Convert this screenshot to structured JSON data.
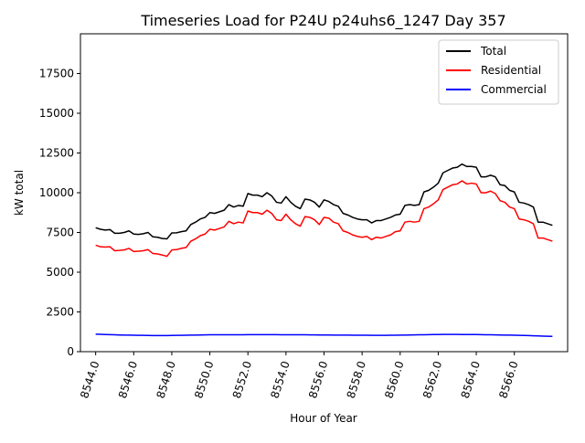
{
  "chart_data": {
    "type": "line",
    "title": "Timeseries Load for P24U p24uhs6_1247  Day 357",
    "xlabel": "Hour of Year",
    "ylabel": "kW total",
    "xlim": [
      8543.2,
      8568.8
    ],
    "ylim": [
      0,
      20000
    ],
    "x_ticks": [
      8544,
      8546,
      8548,
      8550,
      8552,
      8554,
      8556,
      8558,
      8560,
      8562,
      8564,
      8566
    ],
    "x_tick_labels": [
      "8544.0",
      "8546.0",
      "8548.0",
      "8550.0",
      "8552.0",
      "8554.0",
      "8556.0",
      "8558.0",
      "8560.0",
      "8562.0",
      "8564.0",
      "8566.0"
    ],
    "y_ticks": [
      0,
      2500,
      5000,
      7500,
      10000,
      12500,
      15000,
      17500
    ],
    "y_tick_labels": [
      "0",
      "2500",
      "5000",
      "7500",
      "10000",
      "12500",
      "15000",
      "17500"
    ],
    "legend_position": "top-right",
    "x_start": 8544,
    "x_step": 0.25,
    "series": [
      {
        "name": "Total",
        "color": "#000000",
        "values": [
          7800,
          7700,
          7650,
          7680,
          7450,
          7450,
          7500,
          7600,
          7400,
          7380,
          7420,
          7500,
          7230,
          7200,
          7120,
          7100,
          7470,
          7480,
          7550,
          7600,
          8000,
          8150,
          8350,
          8450,
          8750,
          8700,
          8800,
          8900,
          9250,
          9100,
          9200,
          9150,
          9950,
          9850,
          9850,
          9750,
          10000,
          9800,
          9400,
          9350,
          9750,
          9400,
          9150,
          9000,
          9600,
          9550,
          9400,
          9100,
          9550,
          9450,
          9250,
          9150,
          8700,
          8600,
          8450,
          8350,
          8300,
          8300,
          8100,
          8250,
          8250,
          8350,
          8450,
          8600,
          8650,
          9200,
          9250,
          9200,
          9250,
          10050,
          10150,
          10350,
          10600,
          11250,
          11400,
          11550,
          11600,
          11800,
          11650,
          11650,
          11600,
          11000,
          11000,
          11100,
          11000,
          10500,
          10450,
          10150,
          10050,
          9400,
          9350,
          9250,
          9100,
          8150,
          8150,
          8050,
          7950
        ]
      },
      {
        "name": "Residential",
        "color": "#ff0000",
        "values": [
          6700,
          6600,
          6580,
          6600,
          6350,
          6370,
          6400,
          6500,
          6300,
          6320,
          6350,
          6420,
          6180,
          6150,
          6080,
          6000,
          6400,
          6420,
          6500,
          6550,
          6950,
          7100,
          7300,
          7400,
          7700,
          7650,
          7750,
          7850,
          8200,
          8050,
          8150,
          8100,
          8850,
          8750,
          8750,
          8650,
          8900,
          8700,
          8300,
          8250,
          8650,
          8300,
          8050,
          7900,
          8500,
          8450,
          8300,
          8000,
          8450,
          8400,
          8150,
          8050,
          7600,
          7500,
          7350,
          7250,
          7200,
          7250,
          7050,
          7200,
          7150,
          7250,
          7350,
          7550,
          7600,
          8150,
          8200,
          8150,
          8200,
          9000,
          9100,
          9300,
          9550,
          10200,
          10350,
          10500,
          10550,
          10750,
          10550,
          10600,
          10550,
          10000,
          10000,
          10100,
          9950,
          9500,
          9400,
          9100,
          9000,
          8350,
          8300,
          8200,
          8050,
          7150,
          7150,
          7050,
          6950
        ]
      },
      {
        "name": "Commercial",
        "color": "#0000ff",
        "values": [
          1100,
          1090,
          1080,
          1070,
          1060,
          1050,
          1045,
          1040,
          1035,
          1030,
          1025,
          1020,
          1015,
          1015,
          1015,
          1015,
          1020,
          1025,
          1030,
          1035,
          1040,
          1045,
          1050,
          1055,
          1060,
          1060,
          1060,
          1060,
          1065,
          1065,
          1065,
          1065,
          1070,
          1070,
          1070,
          1070,
          1070,
          1070,
          1070,
          1065,
          1065,
          1065,
          1060,
          1060,
          1060,
          1055,
          1055,
          1050,
          1050,
          1050,
          1045,
          1045,
          1040,
          1040,
          1035,
          1035,
          1035,
          1035,
          1030,
          1030,
          1030,
          1030,
          1035,
          1035,
          1040,
          1045,
          1050,
          1055,
          1060,
          1065,
          1070,
          1075,
          1080,
          1085,
          1085,
          1085,
          1085,
          1080,
          1080,
          1075,
          1075,
          1070,
          1065,
          1060,
          1055,
          1050,
          1045,
          1040,
          1035,
          1030,
          1020,
          1010,
          1000,
          990,
          980,
          970,
          960
        ]
      }
    ]
  }
}
